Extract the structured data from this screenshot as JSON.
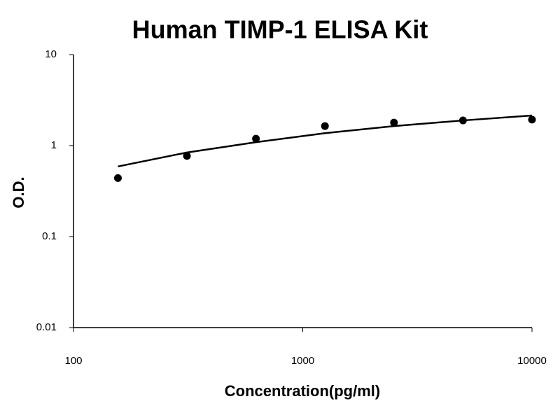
{
  "chart_data": {
    "type": "scatter",
    "title": "Human TIMP-1 ELISA Kit",
    "x_label": "Concentration(pg/ml)",
    "y_label": "O.D.",
    "x_scale": "log",
    "y_scale": "log",
    "xlim": [
      100,
      10000
    ],
    "xticks": [
      100,
      1000,
      10000
    ],
    "ylim": [
      0.01,
      10
    ],
    "yticks": [
      0.01,
      0.1,
      1,
      10
    ],
    "grid": false,
    "series": [
      {
        "type": "scatter",
        "color": "#000000",
        "x": [
          156.25,
          312.5,
          625,
          1250,
          2500,
          5000,
          10000
        ],
        "values": [
          0.44,
          0.77,
          1.19,
          1.64,
          1.79,
          1.89,
          1.93
        ]
      },
      {
        "type": "line",
        "color": "#000000",
        "x": [
          156.25,
          312.5,
          625,
          1250,
          2500,
          5000,
          10000
        ],
        "values": [
          0.59,
          0.84,
          1.09,
          1.37,
          1.64,
          1.89,
          2.14
        ]
      }
    ]
  }
}
